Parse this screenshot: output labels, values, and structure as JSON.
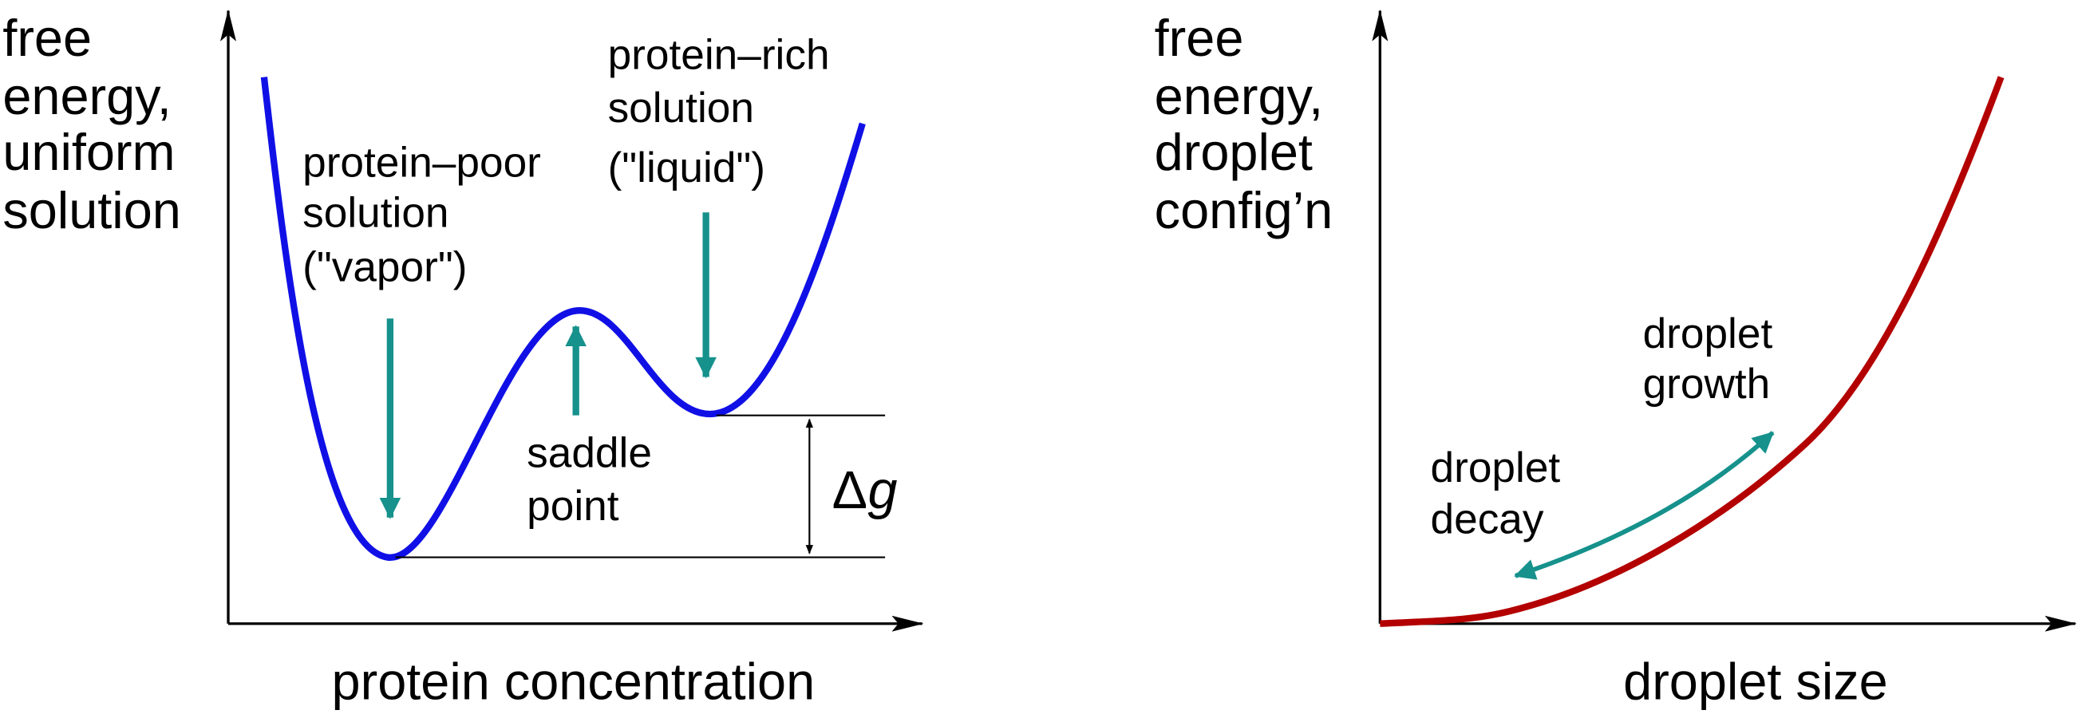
{
  "left_panel": {
    "y_label": [
      "free",
      "energy,",
      "uniform",
      "solution"
    ],
    "poor_label": [
      "protein–poor",
      "solution",
      "(\"vapor\")"
    ],
    "rich_label": [
      "protein–rich",
      "solution",
      "(\"liquid\")"
    ],
    "saddle_label": [
      "saddle",
      "point"
    ],
    "delta_symbol": "Δ",
    "delta_var": "g",
    "x_label": "protein concentration"
  },
  "right_panel": {
    "y_label": [
      "free",
      "energy,",
      "droplet",
      "config’n"
    ],
    "decay_label": [
      "droplet",
      "decay"
    ],
    "growth_label": [
      "droplet",
      "growth"
    ],
    "x_label": "droplet size"
  }
}
